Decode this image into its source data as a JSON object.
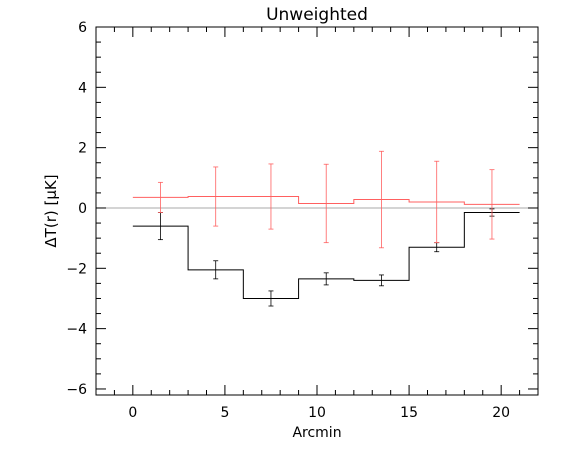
{
  "chart_data": {
    "type": "step",
    "title": "Unweighted",
    "xlabel": "Arcmin",
    "ylabel": "ΔT(r) [μK]",
    "xlim": [
      -2,
      22
    ],
    "ylim": [
      -6.2,
      6.0
    ],
    "x_ticks": [
      0,
      5,
      10,
      15,
      20
    ],
    "y_ticks": [
      -6,
      -4,
      -2,
      0,
      2,
      4,
      6
    ],
    "zero_line": true,
    "series": [
      {
        "color": "#000000",
        "bin_edges": [
          0,
          3,
          6,
          9,
          12,
          15,
          18,
          21
        ],
        "bin_centers": [
          1.5,
          4.5,
          7.5,
          10.5,
          13.5,
          16.5,
          19.5
        ],
        "values": [
          -0.6,
          -2.05,
          -3.0,
          -2.35,
          -2.4,
          -1.3,
          -0.15
        ],
        "errors": [
          0.45,
          0.3,
          0.25,
          0.2,
          0.18,
          0.15,
          0.12
        ]
      },
      {
        "color": "#ff6060",
        "bin_edges": [
          0,
          3,
          6,
          9,
          12,
          15,
          18,
          21
        ],
        "bin_centers": [
          1.5,
          4.5,
          7.5,
          10.5,
          13.5,
          16.5,
          19.5
        ],
        "values": [
          0.35,
          0.38,
          0.38,
          0.15,
          0.28,
          0.2,
          0.12
        ],
        "errors": [
          0.5,
          0.98,
          1.08,
          1.3,
          1.6,
          1.35,
          1.15
        ]
      }
    ]
  }
}
